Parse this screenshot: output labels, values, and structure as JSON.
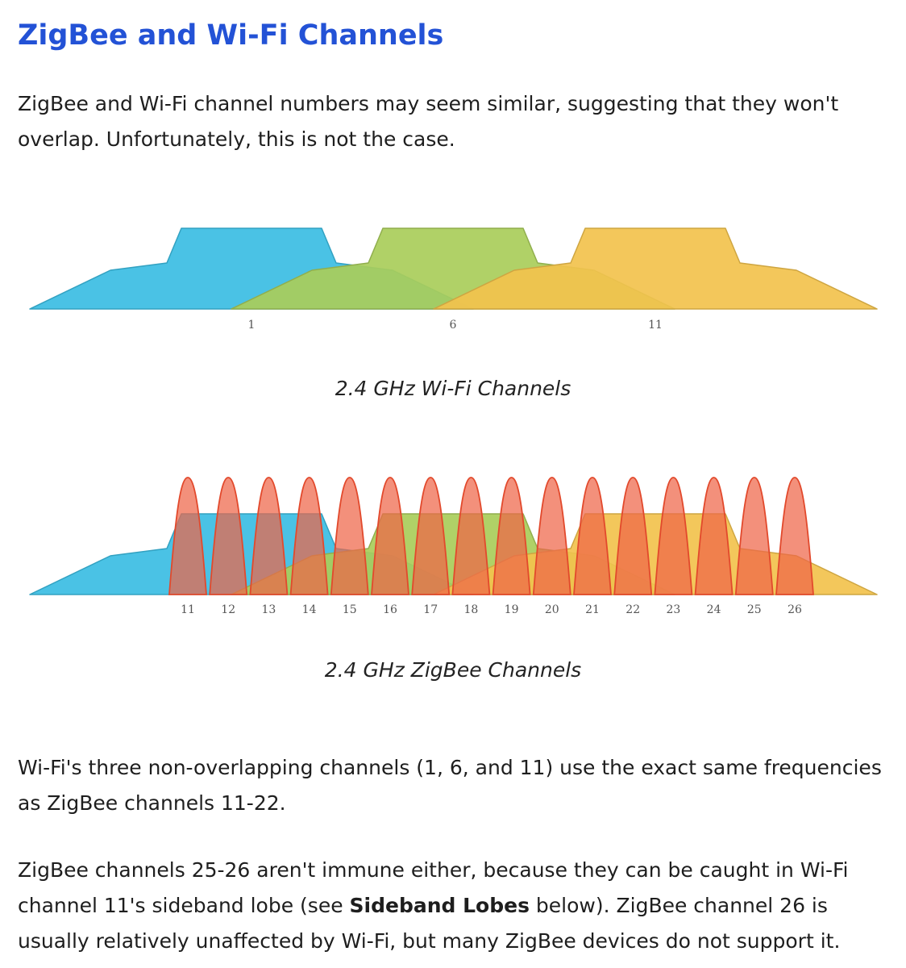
{
  "heading": "ZigBee and Wi-Fi Channels",
  "paragraph1": "ZigBee and Wi-Fi channel numbers may seem similar, suggesting that they won't overlap. Unfortunately, this is not the case.",
  "wifi_figure": {
    "caption": "2.4 GHz Wi-Fi Channels",
    "channels": [
      {
        "label": "1",
        "color": "#3bbde3"
      },
      {
        "label": "6",
        "color": "#a9cd5a"
      },
      {
        "label": "11",
        "color": "#f2c24d"
      }
    ]
  },
  "zigbee_figure": {
    "caption": "2.4 GHz ZigBee Channels",
    "channel_color": "#ef6548",
    "channels": [
      "11",
      "12",
      "13",
      "14",
      "15",
      "16",
      "17",
      "18",
      "19",
      "20",
      "21",
      "22",
      "23",
      "24",
      "25",
      "26"
    ]
  },
  "paragraph2": "Wi-Fi's three non-overlapping channels (1, 6, and 11) use the exact same frequencies as ZigBee channels 11-22.",
  "paragraph3": {
    "before": "ZigBee channels 25-26 aren't immune either, because they can be caught in Wi-Fi channel 11's sideband lobe (see ",
    "bold": "Sideband Lobes",
    "after": " below). ZigBee channel 26 is usually relatively unaffected by Wi-Fi, but many ZigBee devices do not support it."
  }
}
